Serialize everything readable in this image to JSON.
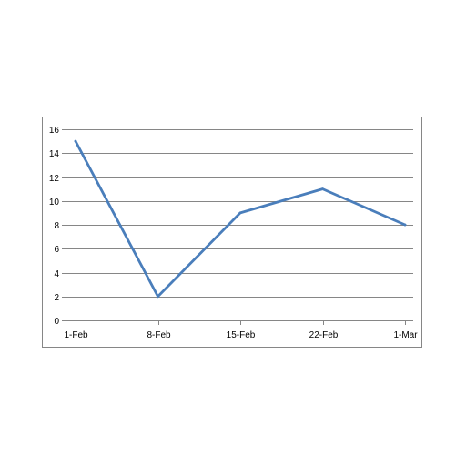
{
  "chart_data": {
    "type": "line",
    "categories": [
      "1-Feb",
      "8-Feb",
      "15-Feb",
      "22-Feb",
      "1-Mar"
    ],
    "series": [
      {
        "values": [
          15,
          2,
          9,
          11,
          8
        ],
        "color": "#4A7EBB"
      }
    ],
    "yticks": [
      0,
      2,
      4,
      6,
      8,
      10,
      12,
      14,
      16
    ],
    "ylim": [
      0,
      16
    ],
    "grid": true,
    "gridColor": "#868686",
    "title": "",
    "xlabel": "",
    "ylabel": "",
    "legend": "none"
  }
}
